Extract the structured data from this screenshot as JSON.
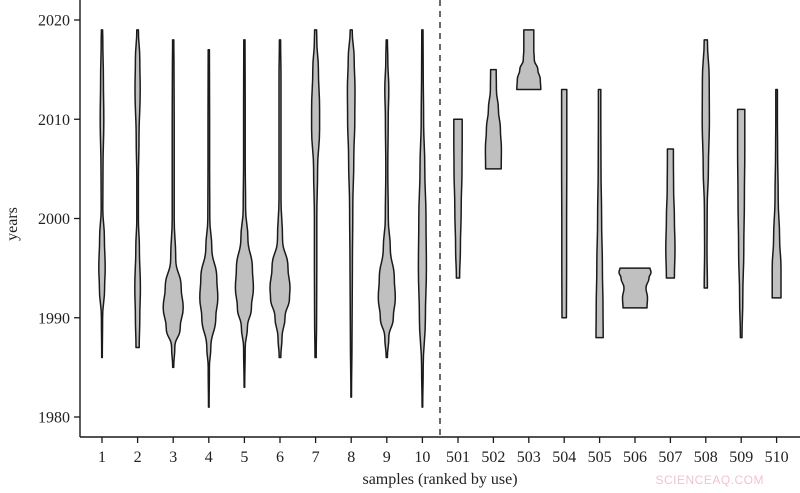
{
  "chart_data": {
    "type": "violin",
    "title": "",
    "xlabel": "samples (ranked by use)",
    "ylabel": "years",
    "ylim": [
      1978,
      2022
    ],
    "yticks": [
      1980,
      1990,
      2000,
      2010,
      2020
    ],
    "grid": false,
    "legend": null,
    "divider": {
      "style": "dashed",
      "between": [
        "10",
        "501"
      ]
    },
    "fill_color": "#c0c0c0",
    "stroke_color": "#1a1a1a",
    "categories": [
      "1",
      "2",
      "3",
      "4",
      "5",
      "6",
      "7",
      "8",
      "9",
      "10",
      "501",
      "502",
      "503",
      "504",
      "505",
      "506",
      "507",
      "508",
      "509",
      "510"
    ],
    "series": [
      {
        "name": "1",
        "min": 1986,
        "max": 2019,
        "mode": 1995,
        "profile": [
          [
            1986,
            0.3
          ],
          [
            1990,
            0.6
          ],
          [
            1993,
            2.6
          ],
          [
            1995,
            3.2
          ],
          [
            1998,
            2.4
          ],
          [
            2001,
            0.8
          ],
          [
            2005,
            1.0
          ],
          [
            2010,
            1.8
          ],
          [
            2014,
            1.4
          ],
          [
            2018,
            0.8
          ],
          [
            2019,
            0.6
          ]
        ]
      },
      {
        "name": "2",
        "min": 1987,
        "max": 2019,
        "mode": 1993,
        "profile": [
          [
            1987,
            1.6
          ],
          [
            1990,
            2.2
          ],
          [
            1993,
            2.8
          ],
          [
            1997,
            1.8
          ],
          [
            2000,
            0.8
          ],
          [
            2004,
            0.8
          ],
          [
            2008,
            1.4
          ],
          [
            2013,
            2.6
          ],
          [
            2016,
            2.2
          ],
          [
            2019,
            0.8
          ]
        ]
      },
      {
        "name": "3",
        "min": 1985,
        "max": 2018,
        "mode": 1991,
        "profile": [
          [
            1985,
            0.5
          ],
          [
            1987,
            1.6
          ],
          [
            1989,
            7.0
          ],
          [
            1991,
            10.0
          ],
          [
            1993,
            8.0
          ],
          [
            1996,
            2.5
          ],
          [
            2000,
            1.0
          ],
          [
            2005,
            1.0
          ],
          [
            2010,
            1.0
          ],
          [
            2015,
            0.8
          ],
          [
            2018,
            0.6
          ]
        ]
      },
      {
        "name": "4",
        "min": 1981,
        "max": 2017,
        "mode": 1992,
        "profile": [
          [
            1981,
            0.3
          ],
          [
            1985,
            0.6
          ],
          [
            1987,
            2.0
          ],
          [
            1990,
            7.0
          ],
          [
            1992,
            9.0
          ],
          [
            1994,
            8.0
          ],
          [
            1997,
            3.0
          ],
          [
            2000,
            1.0
          ],
          [
            2005,
            0.8
          ],
          [
            2010,
            0.8
          ],
          [
            2017,
            0.6
          ]
        ]
      },
      {
        "name": "5",
        "min": 1983,
        "max": 2018,
        "mode": 1993,
        "profile": [
          [
            1983,
            0.3
          ],
          [
            1987,
            0.8
          ],
          [
            1989,
            3.0
          ],
          [
            1991,
            7.0
          ],
          [
            1993,
            9.0
          ],
          [
            1995,
            8.0
          ],
          [
            1998,
            3.5
          ],
          [
            2001,
            1.2
          ],
          [
            2006,
            0.8
          ],
          [
            2012,
            0.8
          ],
          [
            2018,
            0.6
          ]
        ]
      },
      {
        "name": "6",
        "min": 1986,
        "max": 2018,
        "mode": 1993,
        "profile": [
          [
            1986,
            0.8
          ],
          [
            1988,
            2.0
          ],
          [
            1990,
            5.0
          ],
          [
            1992,
            9.5
          ],
          [
            1993,
            10.0
          ],
          [
            1995,
            8.0
          ],
          [
            1998,
            2.5
          ],
          [
            2002,
            1.0
          ],
          [
            2008,
            1.0
          ],
          [
            2014,
            1.0
          ],
          [
            2018,
            0.6
          ]
        ]
      },
      {
        "name": "7",
        "min": 1986,
        "max": 2019,
        "mode": 2010,
        "profile": [
          [
            1986,
            0.6
          ],
          [
            1990,
            1.0
          ],
          [
            1995,
            1.2
          ],
          [
            2000,
            1.2
          ],
          [
            2005,
            2.0
          ],
          [
            2009,
            4.0
          ],
          [
            2011,
            4.0
          ],
          [
            2015,
            2.8
          ],
          [
            2018,
            1.2
          ],
          [
            2019,
            1.0
          ]
        ]
      },
      {
        "name": "8",
        "min": 1982,
        "max": 2019,
        "mode": 2013,
        "profile": [
          [
            1982,
            0.3
          ],
          [
            1988,
            0.8
          ],
          [
            1995,
            1.2
          ],
          [
            2001,
            1.6
          ],
          [
            2006,
            2.6
          ],
          [
            2010,
            3.6
          ],
          [
            2013,
            3.8
          ],
          [
            2016,
            3.0
          ],
          [
            2019,
            1.0
          ]
        ]
      },
      {
        "name": "9",
        "min": 1986,
        "max": 2018,
        "mode": 1992,
        "profile": [
          [
            1986,
            0.6
          ],
          [
            1988,
            2.0
          ],
          [
            1990,
            6.5
          ],
          [
            1992,
            8.5
          ],
          [
            1994,
            7.5
          ],
          [
            1997,
            3.5
          ],
          [
            2000,
            1.5
          ],
          [
            2005,
            1.0
          ],
          [
            2010,
            1.4
          ],
          [
            2013,
            2.0
          ],
          [
            2016,
            1.0
          ],
          [
            2018,
            0.6
          ]
        ]
      },
      {
        "name": "10",
        "min": 1981,
        "max": 2019,
        "mode": 1995,
        "profile": [
          [
            1981,
            0.3
          ],
          [
            1985,
            0.8
          ],
          [
            1990,
            3.0
          ],
          [
            1995,
            4.0
          ],
          [
            2000,
            3.6
          ],
          [
            2005,
            2.4
          ],
          [
            2010,
            1.2
          ],
          [
            2015,
            0.8
          ],
          [
            2019,
            0.6
          ]
        ]
      },
      {
        "name": "501",
        "min": 1994,
        "max": 2010,
        "mode": 2008,
        "profile": [
          [
            1994,
            1.6
          ],
          [
            1997,
            2.4
          ],
          [
            2001,
            3.2
          ],
          [
            2005,
            4.0
          ],
          [
            2008,
            4.2
          ],
          [
            2010,
            4.2
          ]
        ]
      },
      {
        "name": "502",
        "min": 2005,
        "max": 2015,
        "mode": 2006,
        "profile": [
          [
            2005,
            7.8
          ],
          [
            2007,
            8.0
          ],
          [
            2009,
            7.0
          ],
          [
            2011,
            5.0
          ],
          [
            2013,
            3.0
          ],
          [
            2015,
            2.8
          ]
        ]
      },
      {
        "name": "503",
        "min": 2013,
        "max": 2019,
        "mode": 2013,
        "profile": [
          [
            2013,
            12.0
          ],
          [
            2014,
            11.5
          ],
          [
            2015,
            9.0
          ],
          [
            2016,
            5.5
          ],
          [
            2017,
            5.0
          ],
          [
            2019,
            5.0
          ]
        ]
      },
      {
        "name": "504",
        "min": 1990,
        "max": 2013,
        "mode": 2013,
        "profile": [
          [
            1990,
            2.2
          ],
          [
            1995,
            2.4
          ],
          [
            2000,
            2.4
          ],
          [
            2005,
            2.6
          ],
          [
            2010,
            2.6
          ],
          [
            2013,
            2.6
          ]
        ]
      },
      {
        "name": "505",
        "min": 1988,
        "max": 2013,
        "mode": 1989,
        "profile": [
          [
            1988,
            3.6
          ],
          [
            1991,
            3.4
          ],
          [
            1995,
            2.8
          ],
          [
            2000,
            2.0
          ],
          [
            2005,
            1.4
          ],
          [
            2010,
            1.2
          ],
          [
            2013,
            1.2
          ]
        ]
      },
      {
        "name": "506",
        "min": 1991,
        "max": 1995,
        "mode": 1994.5,
        "profile": [
          [
            1991,
            12.0
          ],
          [
            1992,
            12.5
          ],
          [
            1993,
            11.0
          ],
          [
            1994,
            14.0
          ],
          [
            1994.6,
            16.0
          ],
          [
            1995,
            15.0
          ]
        ]
      },
      {
        "name": "507",
        "min": 1994,
        "max": 2007,
        "mode": 1997,
        "profile": [
          [
            1994,
            4.0
          ],
          [
            1997,
            4.6
          ],
          [
            2000,
            4.0
          ],
          [
            2003,
            3.2
          ],
          [
            2006,
            3.0
          ],
          [
            2007,
            3.0
          ]
        ]
      },
      {
        "name": "508",
        "min": 1993,
        "max": 2018,
        "mode": 2012,
        "profile": [
          [
            1993,
            1.6
          ],
          [
            1997,
            1.2
          ],
          [
            2001,
            1.4
          ],
          [
            2005,
            2.6
          ],
          [
            2010,
            3.6
          ],
          [
            2014,
            3.4
          ],
          [
            2018,
            1.6
          ]
        ]
      },
      {
        "name": "509",
        "min": 1988,
        "max": 2011,
        "mode": 2010,
        "profile": [
          [
            1988,
            0.8
          ],
          [
            1992,
            1.6
          ],
          [
            1997,
            2.6
          ],
          [
            2002,
            3.2
          ],
          [
            2007,
            3.6
          ],
          [
            2011,
            3.6
          ]
        ]
      },
      {
        "name": "510",
        "min": 1992,
        "max": 2013,
        "mode": 1994,
        "profile": [
          [
            1992,
            4.4
          ],
          [
            1995,
            4.4
          ],
          [
            1998,
            3.0
          ],
          [
            2002,
            1.6
          ],
          [
            2007,
            1.0
          ],
          [
            2010,
            0.8
          ],
          [
            2013,
            0.8
          ]
        ]
      }
    ]
  },
  "axes": {
    "y_title": "years",
    "x_title": "samples (ranked by use)"
  },
  "watermark": "SCIENCEAQ.COM"
}
